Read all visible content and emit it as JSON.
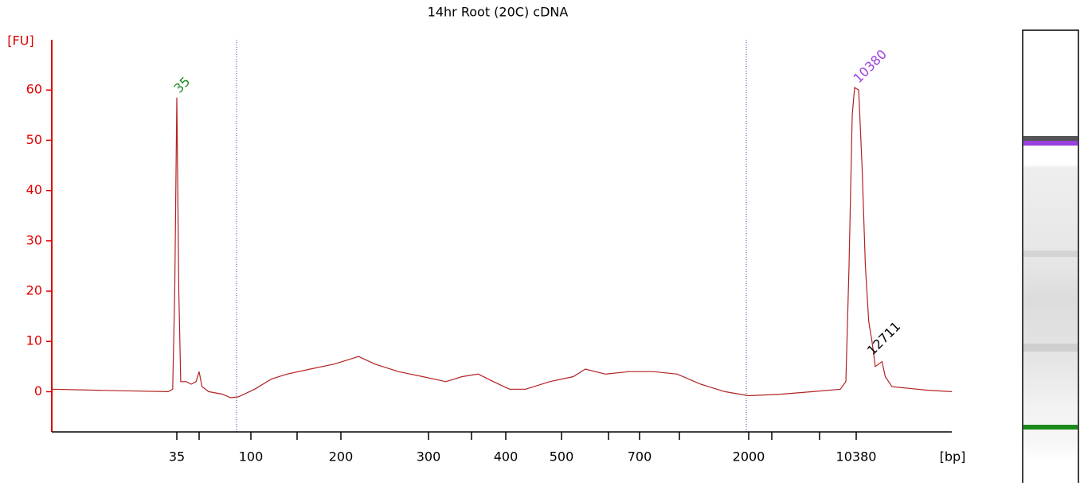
{
  "chart_data": {
    "type": "line",
    "title": "14hr Root (20C) cDNA",
    "y_label": "[FU]",
    "x_label": "[bp]",
    "color": "#b22222",
    "axis_color": "#e00000",
    "xlim": [
      6,
      42190
    ],
    "xticks": [
      35,
      100,
      200,
      300,
      400,
      500,
      700,
      2000,
      10380
    ],
    "ylim": [
      -8,
      70
    ],
    "yticks": [
      0,
      10,
      20,
      30,
      40,
      50,
      60
    ],
    "peaks": [
      35,
      10380,
      12711
    ],
    "peak_colors": [
      "#228b22",
      "#9b40e0",
      "#000000"
    ],
    "x": [
      6,
      15.5,
      31,
      33,
      34,
      35,
      36,
      37,
      40,
      43,
      46,
      48,
      50,
      55,
      67,
      75,
      84,
      103,
      117,
      132,
      158,
      190,
      209,
      217,
      234,
      261,
      292,
      320,
      340,
      361,
      382,
      406,
      433,
      477,
      526,
      554,
      604,
      669,
      798,
      1005,
      1262,
      1590,
      2000,
      3258,
      5306,
      8128,
      8857,
      9300,
      9760,
      10126,
      10767,
      11305,
      11870,
      12465,
      13088,
      13740,
      14430,
      15150,
      15910,
      17540,
      20290,
      29280,
      42190
    ],
    "values": [
      0.5,
      0.2,
      0,
      0.5,
      20,
      58.5,
      20,
      2,
      2,
      1.5,
      2,
      4,
      1,
      0,
      -0.5,
      -1.2,
      -1,
      0.5,
      2.5,
      3.5,
      4.5,
      5.5,
      6.5,
      7,
      5.5,
      4,
      3,
      2,
      3,
      3.5,
      2,
      0.5,
      0.5,
      2,
      3,
      4.5,
      3.5,
      4,
      4,
      3.5,
      1.5,
      0,
      -0.8,
      -0.5,
      0,
      0.5,
      2,
      25,
      55,
      60.5,
      60,
      45,
      25,
      14,
      10,
      5,
      5.5,
      6,
      3,
      1,
      0.8,
      0.3,
      0
    ]
  }
}
